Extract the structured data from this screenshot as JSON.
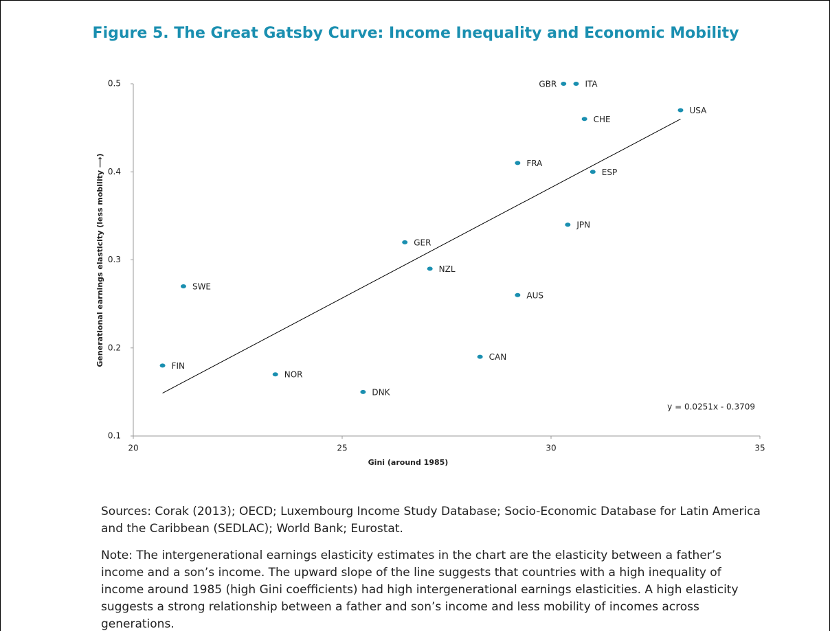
{
  "chart_data": {
    "type": "scatter",
    "title": "Figure 5. The Great Gatsby Curve: Income Inequality and Economic Mobility",
    "x_label": "Gini (around 1985)",
    "y_label": "Generational earnings elasticity (less mobility ⟶)",
    "labels": [
      "GBR",
      "ITA",
      "USA",
      "CHE",
      "FRA",
      "ESP",
      "JPN",
      "GER",
      "NZL",
      "AUS",
      "SWE",
      "FIN",
      "CAN",
      "NOR",
      "DNK"
    ],
    "x": [
      30.3,
      30.6,
      33.1,
      30.8,
      29.2,
      31.0,
      30.4,
      26.5,
      27.1,
      29.2,
      21.2,
      20.7,
      28.3,
      23.4,
      25.5
    ],
    "values": [
      0.5,
      0.5,
      0.47,
      0.46,
      0.41,
      0.4,
      0.34,
      0.32,
      0.29,
      0.26,
      0.27,
      0.18,
      0.19,
      0.17,
      0.15
    ],
    "color": "#1a8fb0",
    "xlim": [
      20,
      35
    ],
    "xticks": [
      20,
      25,
      30,
      35
    ],
    "ylim": [
      0.1,
      0.5
    ],
    "yticks": [
      0.1,
      0.2,
      0.3,
      0.4,
      0.5
    ],
    "trendline": {
      "x": [
        20.7,
        33.1
      ],
      "y": [
        0.1487,
        0.4599
      ],
      "label": "y = 0.0251x - 0.3709"
    },
    "notes": [
      "Sources: Corak (2013); OECD; Luxembourg Income Study Database; Socio-Economic Database for Latin America and the Caribbean (SEDLAC); World Bank; Eurostat.",
      "Note: The intergenerational earnings elasticity estimates in the chart are the elasticity between a father’s income and a son’s income. The upward slope of the line suggests that countries with a high inequality of income around 1985 (high Gini coefficients) had high intergenerational earnings elasticities. A high elasticity suggests a strong relationship between a father and son’s income and less mobility of incomes across generations."
    ]
  }
}
